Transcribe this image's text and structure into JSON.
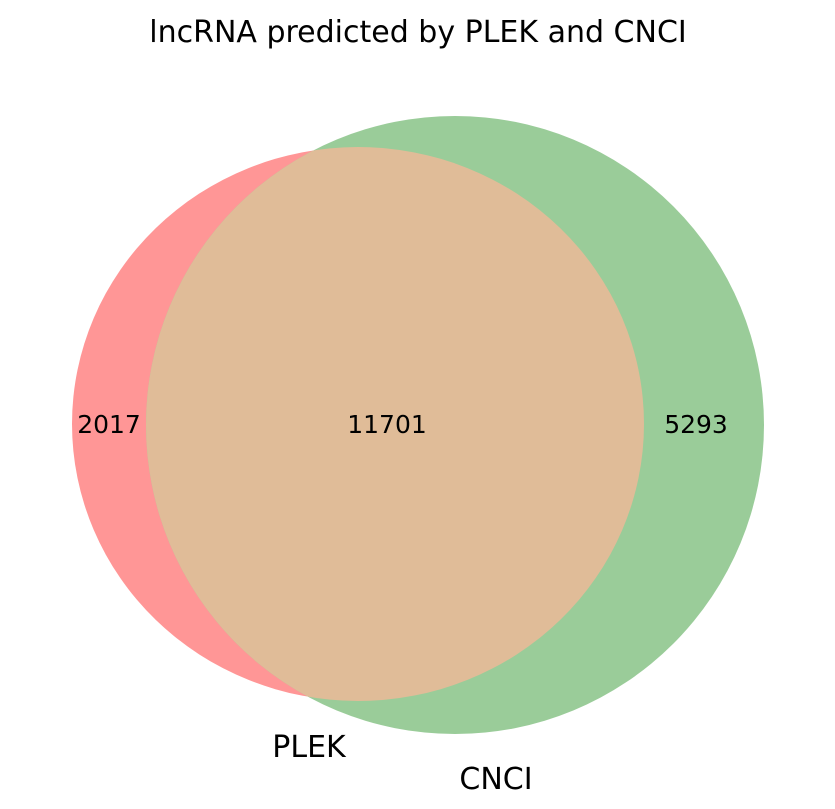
{
  "title": "lncRNA predicted by PLEK and CNCI",
  "venn": {
    "sets": [
      {
        "name": "PLEK",
        "color": "#ff9696"
      },
      {
        "name": "CNCI",
        "color": "#9acc99"
      }
    ],
    "overlap_color": "#e0bc98",
    "regions": {
      "plek_only": "2017",
      "both": "11701",
      "cnci_only": "5293"
    }
  }
}
